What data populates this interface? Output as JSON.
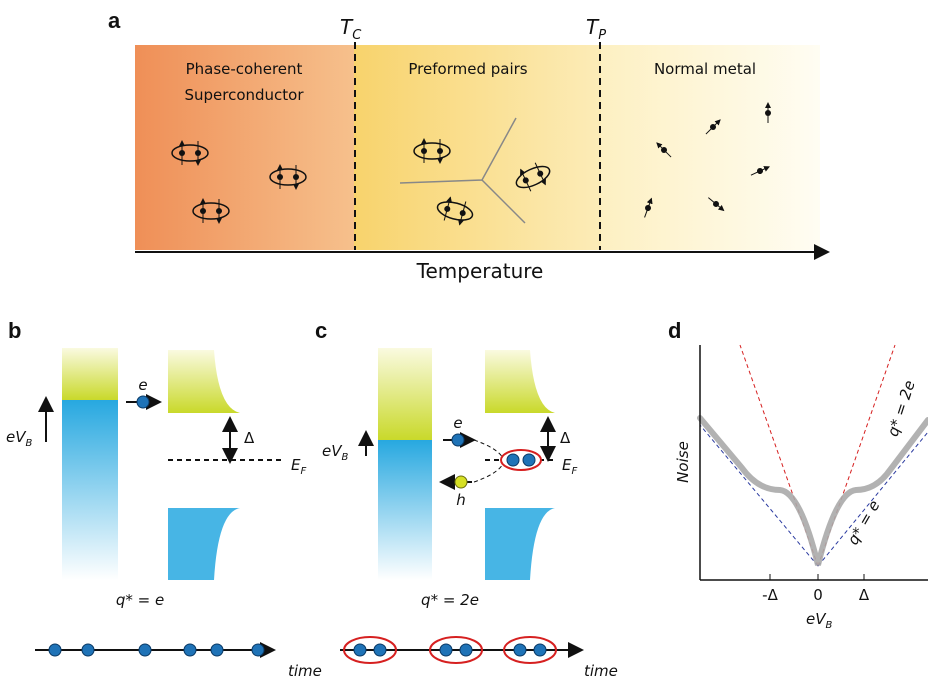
{
  "panel_a": {
    "label": "a",
    "tc": {
      "main": "T",
      "sub": "C"
    },
    "tp": {
      "main": "T",
      "sub": "P"
    },
    "regions": [
      [
        "Phase-coherent",
        "Superconductor"
      ],
      [
        "Preformed pairs"
      ],
      [
        "Normal metal"
      ]
    ],
    "axis_label": "Temperature"
  },
  "panel_b": {
    "label": "b",
    "bias": {
      "main": "eV",
      "sub": "B"
    },
    "electron": "e",
    "gap": "Δ",
    "fermi": {
      "main": "E",
      "sub": "F"
    },
    "charge": "q* = e",
    "time": "time"
  },
  "panel_c": {
    "label": "c",
    "bias": {
      "main": "eV",
      "sub": "B"
    },
    "electron": "e",
    "hole": "h",
    "gap": "Δ",
    "fermi": {
      "main": "E",
      "sub": "F"
    },
    "charge": "q* = 2e",
    "time": "time"
  },
  "panel_d": {
    "label": "d",
    "y_label": "Noise",
    "x_label": {
      "main": "eV",
      "sub": "B"
    },
    "ticks": [
      "-Δ",
      "0",
      "Δ"
    ],
    "line_2e": "q* = 2e",
    "line_e": "q* = e"
  }
}
